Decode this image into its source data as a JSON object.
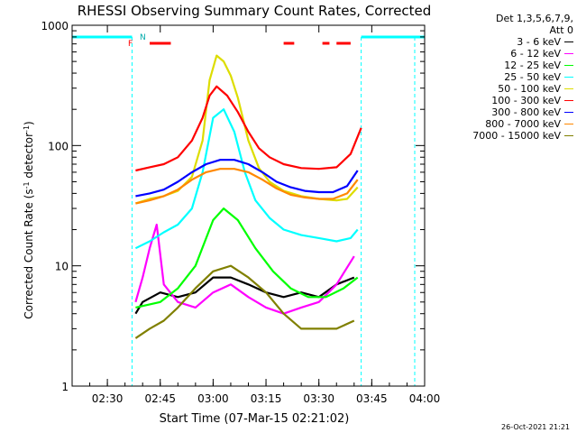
{
  "chart_data": {
    "type": "line",
    "title": "RHESSI Observing Summary Count Rates, Corrected",
    "ylabel": "Corrected Count Rate (s",
    "ylabel_sup": "-1",
    "ylabel_tail": " detector",
    "ylabel_sup2": "-1",
    "ylabel_close": ")",
    "xlabel": "Start Time (07-Mar-15 02:21:02)",
    "yscale": "log",
    "ylim": [
      1,
      1000
    ],
    "xlim": [
      "02:20",
      "04:00"
    ],
    "x_ticks": [
      "02:30",
      "02:45",
      "03:00",
      "03:15",
      "03:30",
      "03:45",
      "04:00"
    ],
    "y_ticks": [
      "1",
      "10",
      "100",
      "1000"
    ],
    "grid": false,
    "legend_position": "right",
    "legend_header": [
      "Det 1,3,5,6,7,9,",
      "Att 0"
    ],
    "flags": {
      "F_label": "F",
      "N_label": "N",
      "night_intervals": [
        [
          "02:20",
          "02:37"
        ],
        [
          "03:42",
          "04:00"
        ]
      ],
      "flare_intervals": [
        [
          "02:42",
          "02:48"
        ],
        [
          "03:20",
          "03:23"
        ],
        [
          "03:31",
          "03:33"
        ],
        [
          "03:35",
          "03:39"
        ]
      ]
    },
    "series": [
      {
        "name": "3 - 6 keV",
        "color": "#000000",
        "x": [
          "02:38",
          "02:40",
          "02:45",
          "02:50",
          "02:55",
          "03:00",
          "03:05",
          "03:10",
          "03:15",
          "03:20",
          "03:25",
          "03:30",
          "03:35",
          "03:40"
        ],
        "y": [
          4,
          5,
          6,
          5.5,
          6,
          8,
          8,
          7,
          6,
          5.5,
          6,
          5.5,
          7,
          8
        ]
      },
      {
        "name": "6 - 12 keV",
        "color": "#ff00ff",
        "x": [
          "02:38",
          "02:40",
          "02:42",
          "02:44",
          "02:46",
          "02:50",
          "02:55",
          "03:00",
          "03:05",
          "03:10",
          "03:15",
          "03:20",
          "03:25",
          "03:30",
          "03:35",
          "03:40"
        ],
        "y": [
          5,
          8,
          14,
          22,
          7,
          5,
          4.5,
          6,
          7,
          5.5,
          4.5,
          4,
          4.5,
          5,
          7,
          12
        ]
      },
      {
        "name": "12 - 25 keV",
        "color": "#00ff00",
        "x": [
          "02:38",
          "02:45",
          "02:50",
          "02:55",
          "03:00",
          "03:03",
          "03:07",
          "03:12",
          "03:17",
          "03:22",
          "03:27",
          "03:32",
          "03:37",
          "03:41"
        ],
        "y": [
          4.5,
          5,
          6.5,
          10,
          24,
          30,
          24,
          14,
          9,
          6.5,
          5.5,
          5.5,
          6.5,
          8
        ]
      },
      {
        "name": "25 - 50 keV",
        "color": "#00ffff",
        "x": [
          "02:38",
          "02:42",
          "02:46",
          "02:50",
          "02:54",
          "02:57",
          "03:00",
          "03:03",
          "03:06",
          "03:09",
          "03:12",
          "03:16",
          "03:20",
          "03:25",
          "03:30",
          "03:35",
          "03:39",
          "03:41"
        ],
        "y": [
          14,
          16,
          19,
          22,
          30,
          60,
          170,
          200,
          130,
          60,
          35,
          25,
          20,
          18,
          17,
          16,
          17,
          20
        ]
      },
      {
        "name": "50 - 100 keV",
        "color": "#dddd00",
        "x": [
          "02:38",
          "02:42",
          "02:46",
          "02:50",
          "02:54",
          "02:57",
          "02:59",
          "03:01",
          "03:03",
          "03:05",
          "03:07",
          "03:10",
          "03:13",
          "03:16",
          "03:20",
          "03:25",
          "03:30",
          "03:35",
          "03:38",
          "03:41"
        ],
        "y": [
          33,
          36,
          38,
          42,
          55,
          110,
          350,
          560,
          500,
          380,
          250,
          110,
          65,
          50,
          42,
          38,
          36,
          35,
          36,
          45
        ]
      },
      {
        "name": "100 - 300 keV",
        "color": "#ff0000",
        "x": [
          "02:38",
          "02:42",
          "02:46",
          "02:50",
          "02:54",
          "02:57",
          "02:59",
          "03:01",
          "03:04",
          "03:07",
          "03:10",
          "03:13",
          "03:16",
          "03:20",
          "03:25",
          "03:30",
          "03:35",
          "03:39",
          "03:42"
        ],
        "y": [
          62,
          66,
          70,
          80,
          110,
          170,
          260,
          310,
          260,
          190,
          130,
          95,
          80,
          70,
          65,
          64,
          66,
          85,
          140
        ]
      },
      {
        "name": "300 - 800 keV",
        "color": "#0000ff",
        "x": [
          "02:38",
          "02:42",
          "02:46",
          "02:50",
          "02:54",
          "02:58",
          "03:02",
          "03:06",
          "03:10",
          "03:14",
          "03:18",
          "03:22",
          "03:26",
          "03:30",
          "03:34",
          "03:38",
          "03:41"
        ],
        "y": [
          38,
          40,
          43,
          50,
          60,
          70,
          76,
          76,
          70,
          60,
          50,
          45,
          42,
          41,
          41,
          46,
          62
        ]
      },
      {
        "name": "800 - 7000 keV",
        "color": "#ff8800",
        "x": [
          "02:38",
          "02:42",
          "02:46",
          "02:50",
          "02:54",
          "02:58",
          "03:02",
          "03:06",
          "03:10",
          "03:14",
          "03:18",
          "03:22",
          "03:26",
          "03:30",
          "03:34",
          "03:38",
          "03:41"
        ],
        "y": [
          33,
          35,
          38,
          43,
          52,
          60,
          64,
          64,
          60,
          52,
          44,
          39,
          37,
          36,
          36,
          40,
          52
        ]
      },
      {
        "name": "7000 - 15000 keV",
        "color": "#808000",
        "x": [
          "02:38",
          "02:42",
          "02:46",
          "02:50",
          "02:55",
          "03:00",
          "03:05",
          "03:10",
          "03:15",
          "03:20",
          "03:25",
          "03:30",
          "03:35",
          "03:40"
        ],
        "y": [
          2.5,
          3,
          3.5,
          4.5,
          6.5,
          9,
          10,
          8,
          6,
          4,
          3,
          3,
          3,
          3.5
        ]
      }
    ]
  },
  "footer": {
    "date": "26-Oct-2021 21:21"
  }
}
